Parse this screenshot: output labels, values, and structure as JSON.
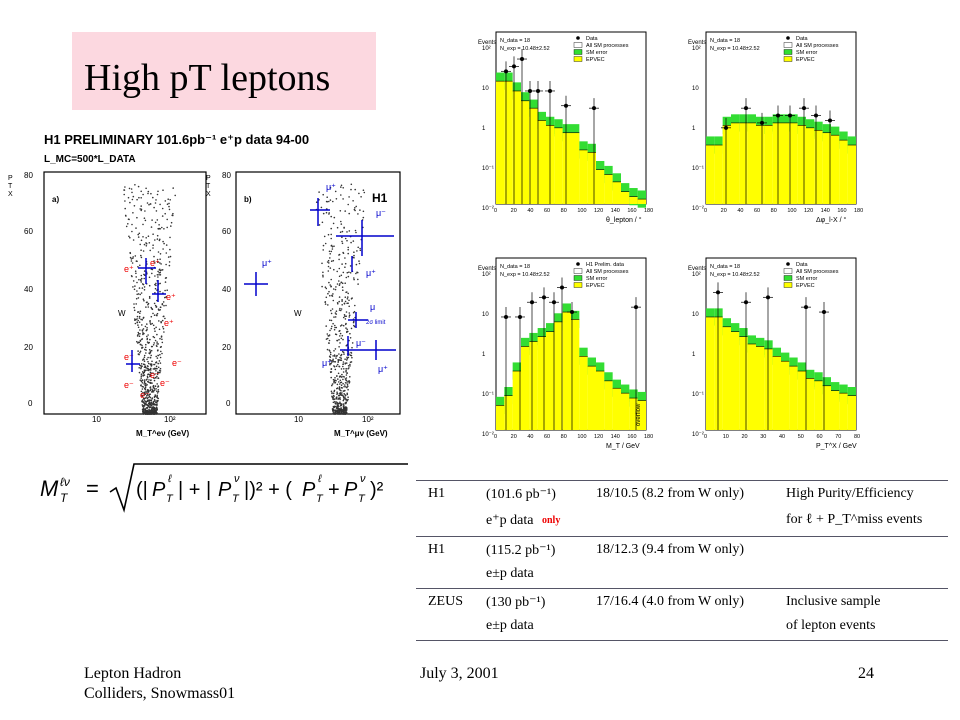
{
  "slide": {
    "title": "High pT leptons",
    "footer_left_line1": "Lepton Hadron",
    "footer_left_line2": "Colliders, Snowmass01",
    "footer_center": "July 3, 2001",
    "footer_right": "24"
  },
  "left_figure": {
    "header": "H1 PRELIMINARY 101.6pb⁻¹ e⁺p data 94-00",
    "lmc": "L_MC=500*L_DATA",
    "yaxis_label": "P_T^X",
    "yticks": [
      "80",
      "60",
      "40",
      "20",
      "0"
    ],
    "xticks": [
      "10",
      "10²"
    ],
    "panel_a": {
      "label": "a)",
      "xlabel": "M_T^eν (GeV)",
      "w_label": "W"
    },
    "panel_b": {
      "label": "b)",
      "xlabel": "M_T^μν (GeV)",
      "w_label": "W",
      "h1_label": "H1",
      "annot": "2σ limit"
    }
  },
  "formula": "M_T^ℓν = √((|P_T^ℓ| + |P_T^ν|)² + (P_T^ℓ + P_T^ν)²)",
  "histograms": {
    "legend_ndata": "N_data = 18",
    "legend_nexp": "N_exp = 10.48±2.52",
    "legend_items": [
      "Data",
      "All SM processes",
      "SM error",
      "EPVEC"
    ],
    "legend_items_c": [
      "H1 Prelim. data",
      "All SM processes",
      "SM error",
      "EPVEC"
    ],
    "yaxis": "Events",
    "panels": [
      {
        "id": "a",
        "xlabel": "θ_lepton / °",
        "xticks": [
          "0",
          "20",
          "40",
          "60",
          "80",
          "100",
          "120",
          "140",
          "160",
          "180"
        ],
        "yticks": [
          "10²",
          "10",
          "1",
          "10⁻¹",
          "10⁻²"
        ]
      },
      {
        "id": "b",
        "xlabel": "Δφ_l-X / °",
        "xticks": [
          "0",
          "20",
          "40",
          "60",
          "80",
          "100",
          "120",
          "140",
          "160",
          "180"
        ],
        "yticks": [
          "10²",
          "10",
          "1",
          "10⁻¹",
          "10⁻²"
        ]
      },
      {
        "id": "c",
        "xlabel": "M_T / GeV",
        "xticks": [
          "0",
          "20",
          "40",
          "60",
          "80",
          "100",
          "120",
          "140",
          "160",
          "180"
        ],
        "yticks": [
          "10²",
          "10",
          "1",
          "10⁻¹",
          "10⁻²"
        ],
        "overflow": "overflow"
      },
      {
        "id": "d",
        "xlabel": "P_T^X / GeV",
        "xticks": [
          "0",
          "10",
          "20",
          "30",
          "40",
          "50",
          "60",
          "70",
          "80"
        ],
        "yticks": [
          "10²",
          "10",
          "1",
          "10⁻¹",
          "10⁻²"
        ]
      }
    ],
    "colors": {
      "sm": "#ffff00",
      "error": "#33dd33",
      "data": "#000000"
    }
  },
  "table": {
    "rows": [
      {
        "exp": "H1",
        "lumi": "(101.6 pb⁻¹)",
        "sub": "e⁺p data",
        "only": "only",
        "obs": "18/10.5 (8.2 from W only)",
        "note1": "High Purity/Efficiency",
        "note2": "for ℓ + P_T^miss events"
      },
      {
        "exp": "H1",
        "lumi": "(115.2 pb⁻¹)",
        "sub": "e±p data",
        "only": "",
        "obs": "18/12.3 (9.4 from W only)",
        "note1": "",
        "note2": ""
      },
      {
        "exp": "ZEUS",
        "lumi": "(130 pb⁻¹)",
        "sub": "e±p data",
        "only": "",
        "obs": "17/16.4 (4.0 from W only)",
        "note1": "Inclusive sample",
        "note2": "of lepton events"
      }
    ]
  }
}
